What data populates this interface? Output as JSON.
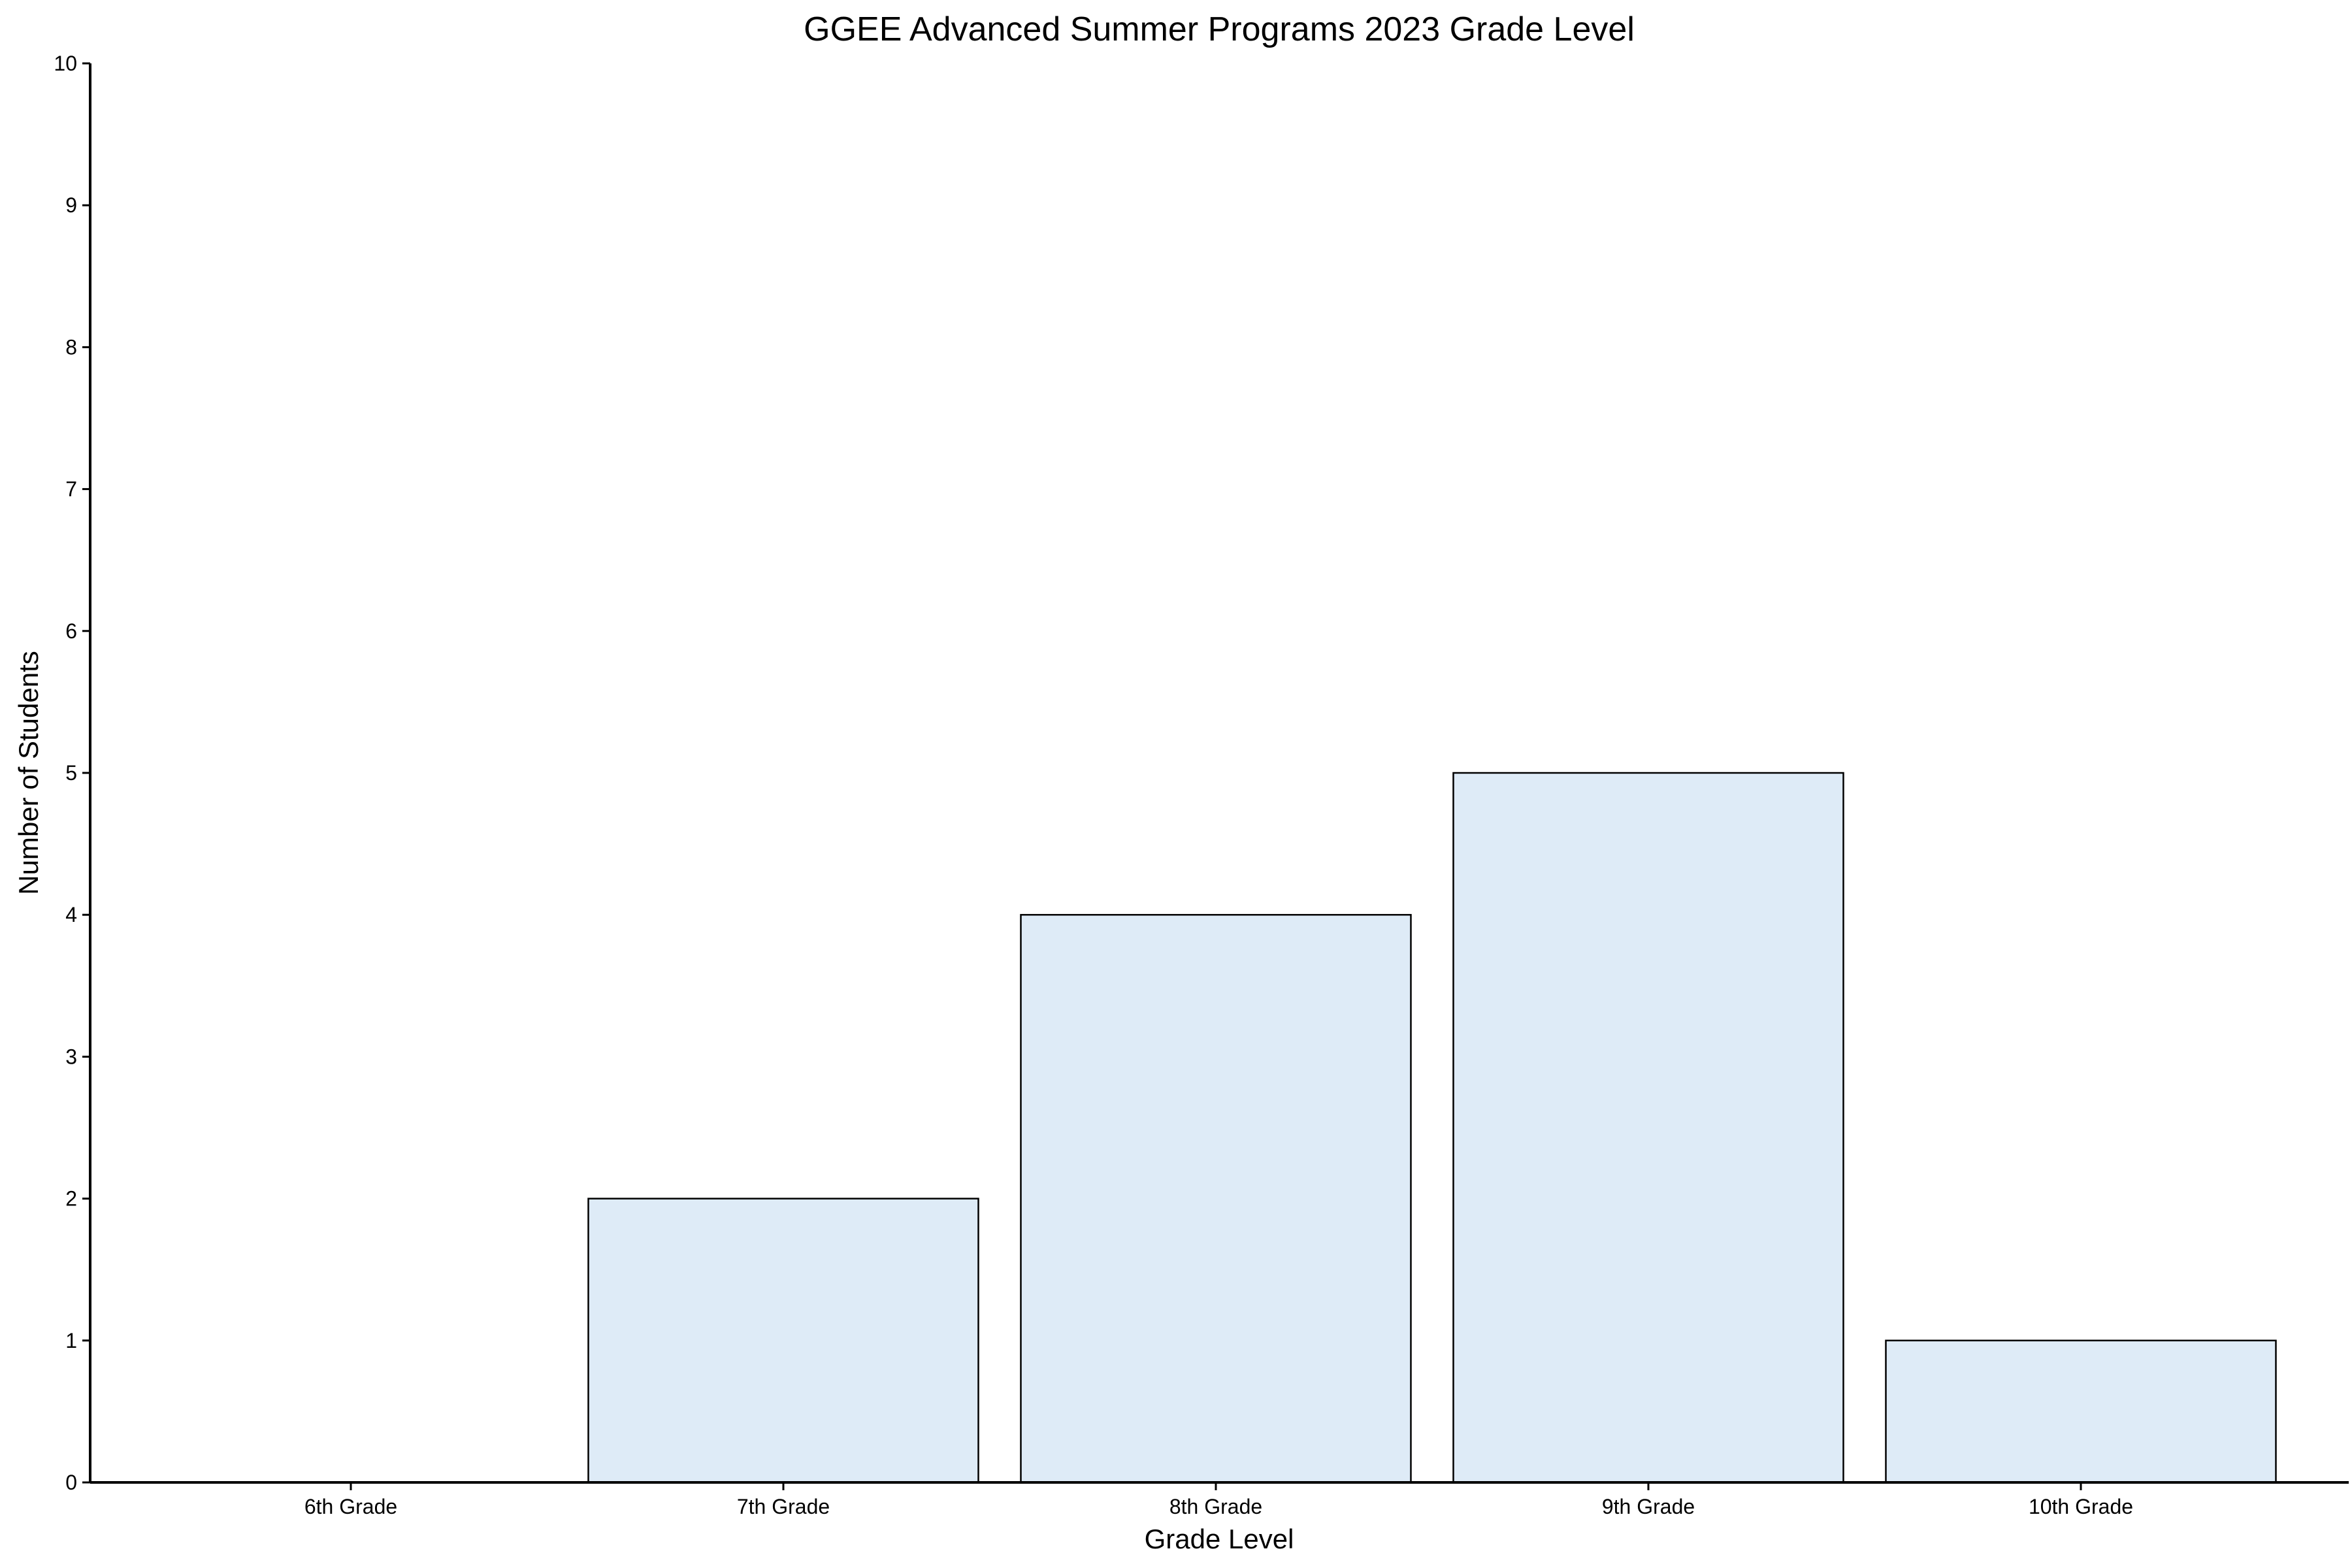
{
  "chart_data": {
    "type": "bar",
    "title": "GGEE Advanced Summer Programs 2023 Grade Level",
    "xlabel": "Grade Level",
    "ylabel": "Number of Students",
    "categories": [
      "6th Grade",
      "7th Grade",
      "8th Grade",
      "9th Grade",
      "10th Grade"
    ],
    "values": [
      0,
      2,
      4,
      5,
      1
    ],
    "ylim": [
      0,
      10
    ],
    "yticks": [
      0,
      1,
      2,
      3,
      4,
      5,
      6,
      7,
      8,
      9,
      10
    ],
    "bar_color": "#deebf7",
    "edge_color": "#000000",
    "grid": false,
    "legend": "none"
  }
}
